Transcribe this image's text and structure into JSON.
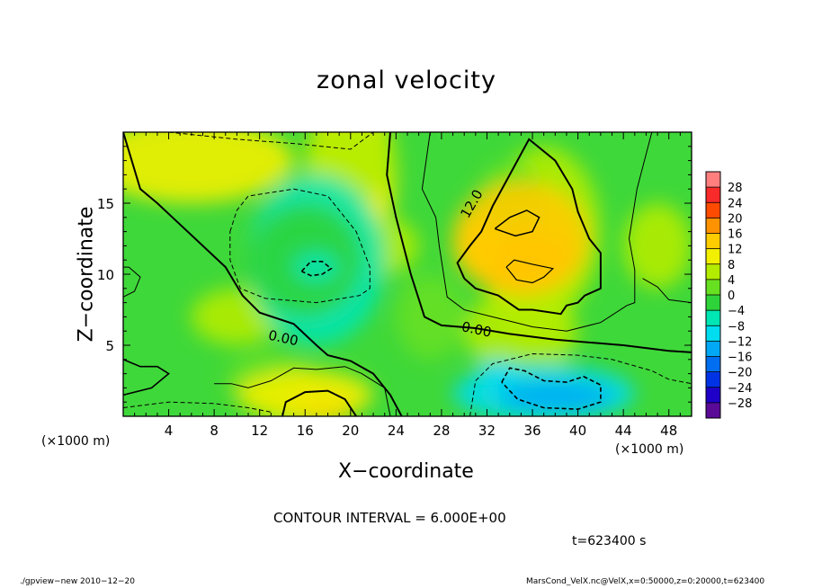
{
  "title": "zonal velocity",
  "xlabel": "X−coordinate",
  "ylabel": "Z−coordinate",
  "x_unit_left": "(×1000 m)",
  "x_unit_right": "(×1000 m)",
  "contour_interval": "CONTOUR INTERVAL = 6.000E+00",
  "time_label": "t=623400 s",
  "footer_left": "./gpview−new  2010−12−20",
  "footer_right": "MarsCond_VelX.nc@VelX,x=0:50000,z=0:20000,t=623400",
  "chart_data": {
    "type": "heatmap",
    "title": "zonal velocity",
    "xlabel": "X−coordinate",
    "ylabel": "Z−coordinate",
    "xlim": [
      0,
      50
    ],
    "ylim": [
      0,
      20
    ],
    "x_ticks": [
      4,
      8,
      12,
      16,
      20,
      24,
      28,
      32,
      36,
      40,
      44,
      48
    ],
    "y_ticks": [
      5,
      10,
      15
    ],
    "contour_interval": 6.0,
    "contour_labels": [
      {
        "text": "0.00",
        "x": 14,
        "y": 5.2
      },
      {
        "text": "0.00",
        "x": 31,
        "y": 5.8
      },
      {
        "text": "12.0",
        "x": 31,
        "y": 14.8
      }
    ],
    "features": [
      {
        "kind": "max",
        "x": 35.5,
        "y": 10.2,
        "value": 19
      },
      {
        "kind": "max",
        "x": 17.5,
        "y": 0.6,
        "value": 18
      },
      {
        "kind": "min",
        "x": 17.0,
        "y": 10.5,
        "value": -11
      },
      {
        "kind": "min",
        "x": 38.5,
        "y": 1.3,
        "value": -14
      }
    ],
    "colorbar": {
      "levels": [
        -28,
        -24,
        -20,
        -16,
        -12,
        -8,
        -4,
        0,
        4,
        8,
        12,
        16,
        20,
        24,
        28
      ],
      "tick_labels": [
        "28",
        "24",
        "20",
        "16",
        "12",
        "8",
        "4",
        "0",
        "−4",
        "−8",
        "−12",
        "−16",
        "−20",
        "−24",
        "−28"
      ],
      "colors": [
        "#5a0a96",
        "#1f00c8",
        "#0033e6",
        "#006ef0",
        "#00a8f5",
        "#00dcf0",
        "#00e6b4",
        "#2ed33a",
        "#66e021",
        "#b4ec00",
        "#f2ef00",
        "#ffcc00",
        "#ff9200",
        "#ff4b00",
        "#f82a2a",
        "#ff7f7f"
      ]
    }
  }
}
